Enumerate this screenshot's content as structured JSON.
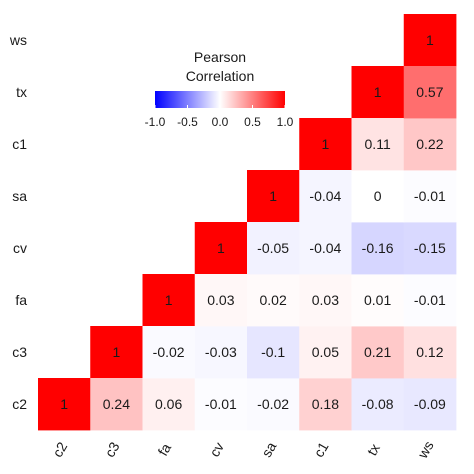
{
  "chart_data": {
    "type": "heatmap",
    "variables": [
      "c2",
      "c3",
      "fa",
      "cv",
      "sa",
      "c1",
      "tx",
      "ws"
    ],
    "x_tick_labels": [
      "c2",
      "c3",
      "fa",
      "cv",
      "sa",
      "c1",
      "tx",
      "ws"
    ],
    "y_tick_labels": [
      "ws",
      "tx",
      "c1",
      "sa",
      "cv",
      "fa",
      "c3",
      "c2"
    ],
    "cells": [
      {
        "x": "c2",
        "y": "c2",
        "value": 1,
        "label": "1"
      },
      {
        "x": "c3",
        "y": "c3",
        "value": 1,
        "label": "1"
      },
      {
        "x": "fa",
        "y": "fa",
        "value": 1,
        "label": "1"
      },
      {
        "x": "cv",
        "y": "cv",
        "value": 1,
        "label": "1"
      },
      {
        "x": "sa",
        "y": "sa",
        "value": 1,
        "label": "1"
      },
      {
        "x": "c1",
        "y": "c1",
        "value": 1,
        "label": "1"
      },
      {
        "x": "tx",
        "y": "tx",
        "value": 1,
        "label": "1"
      },
      {
        "x": "ws",
        "y": "ws",
        "value": 1,
        "label": "1"
      },
      {
        "x": "c3",
        "y": "c2",
        "value": 0.24,
        "label": "0.24"
      },
      {
        "x": "fa",
        "y": "c2",
        "value": 0.06,
        "label": "0.06"
      },
      {
        "x": "cv",
        "y": "c2",
        "value": -0.01,
        "label": "-0.01"
      },
      {
        "x": "sa",
        "y": "c2",
        "value": -0.02,
        "label": "-0.02"
      },
      {
        "x": "c1",
        "y": "c2",
        "value": 0.18,
        "label": "0.18"
      },
      {
        "x": "tx",
        "y": "c2",
        "value": -0.08,
        "label": "-0.08"
      },
      {
        "x": "ws",
        "y": "c2",
        "value": -0.09,
        "label": "-0.09"
      },
      {
        "x": "fa",
        "y": "c3",
        "value": -0.02,
        "label": "-0.02"
      },
      {
        "x": "cv",
        "y": "c3",
        "value": -0.03,
        "label": "-0.03"
      },
      {
        "x": "sa",
        "y": "c3",
        "value": -0.1,
        "label": "-0.1"
      },
      {
        "x": "c1",
        "y": "c3",
        "value": 0.05,
        "label": "0.05"
      },
      {
        "x": "tx",
        "y": "c3",
        "value": 0.21,
        "label": "0.21"
      },
      {
        "x": "ws",
        "y": "c3",
        "value": 0.12,
        "label": "0.12"
      },
      {
        "x": "cv",
        "y": "fa",
        "value": 0.03,
        "label": "0.03"
      },
      {
        "x": "sa",
        "y": "fa",
        "value": 0.02,
        "label": "0.02"
      },
      {
        "x": "c1",
        "y": "fa",
        "value": 0.03,
        "label": "0.03"
      },
      {
        "x": "tx",
        "y": "fa",
        "value": 0.01,
        "label": "0.01"
      },
      {
        "x": "ws",
        "y": "fa",
        "value": -0.01,
        "label": "-0.01"
      },
      {
        "x": "sa",
        "y": "cv",
        "value": -0.05,
        "label": "-0.05"
      },
      {
        "x": "c1",
        "y": "cv",
        "value": -0.04,
        "label": "-0.04"
      },
      {
        "x": "tx",
        "y": "cv",
        "value": -0.16,
        "label": "-0.16"
      },
      {
        "x": "ws",
        "y": "cv",
        "value": -0.15,
        "label": "-0.15"
      },
      {
        "x": "c1",
        "y": "sa",
        "value": -0.04,
        "label": "-0.04"
      },
      {
        "x": "tx",
        "y": "sa",
        "value": 0,
        "label": "0"
      },
      {
        "x": "ws",
        "y": "sa",
        "value": -0.01,
        "label": "-0.01"
      },
      {
        "x": "tx",
        "y": "c1",
        "value": 0.11,
        "label": "0.11"
      },
      {
        "x": "ws",
        "y": "c1",
        "value": 0.22,
        "label": "0.22"
      },
      {
        "x": "ws",
        "y": "tx",
        "value": 0.57,
        "label": "0.57"
      }
    ],
    "legend": {
      "title_lines": [
        "Pearson",
        "Correlation"
      ],
      "ticks": [
        -1.0,
        -0.5,
        0.0,
        0.5,
        1.0
      ],
      "tick_labels": [
        "-1.0",
        "-0.5",
        "0.0",
        "0.5",
        "1.0"
      ],
      "range": [
        -1,
        1
      ],
      "placement": "top-center"
    },
    "colors": {
      "low": "#0000ff",
      "mid": "#ffffff",
      "high": "#ff0000"
    },
    "grid": false
  }
}
